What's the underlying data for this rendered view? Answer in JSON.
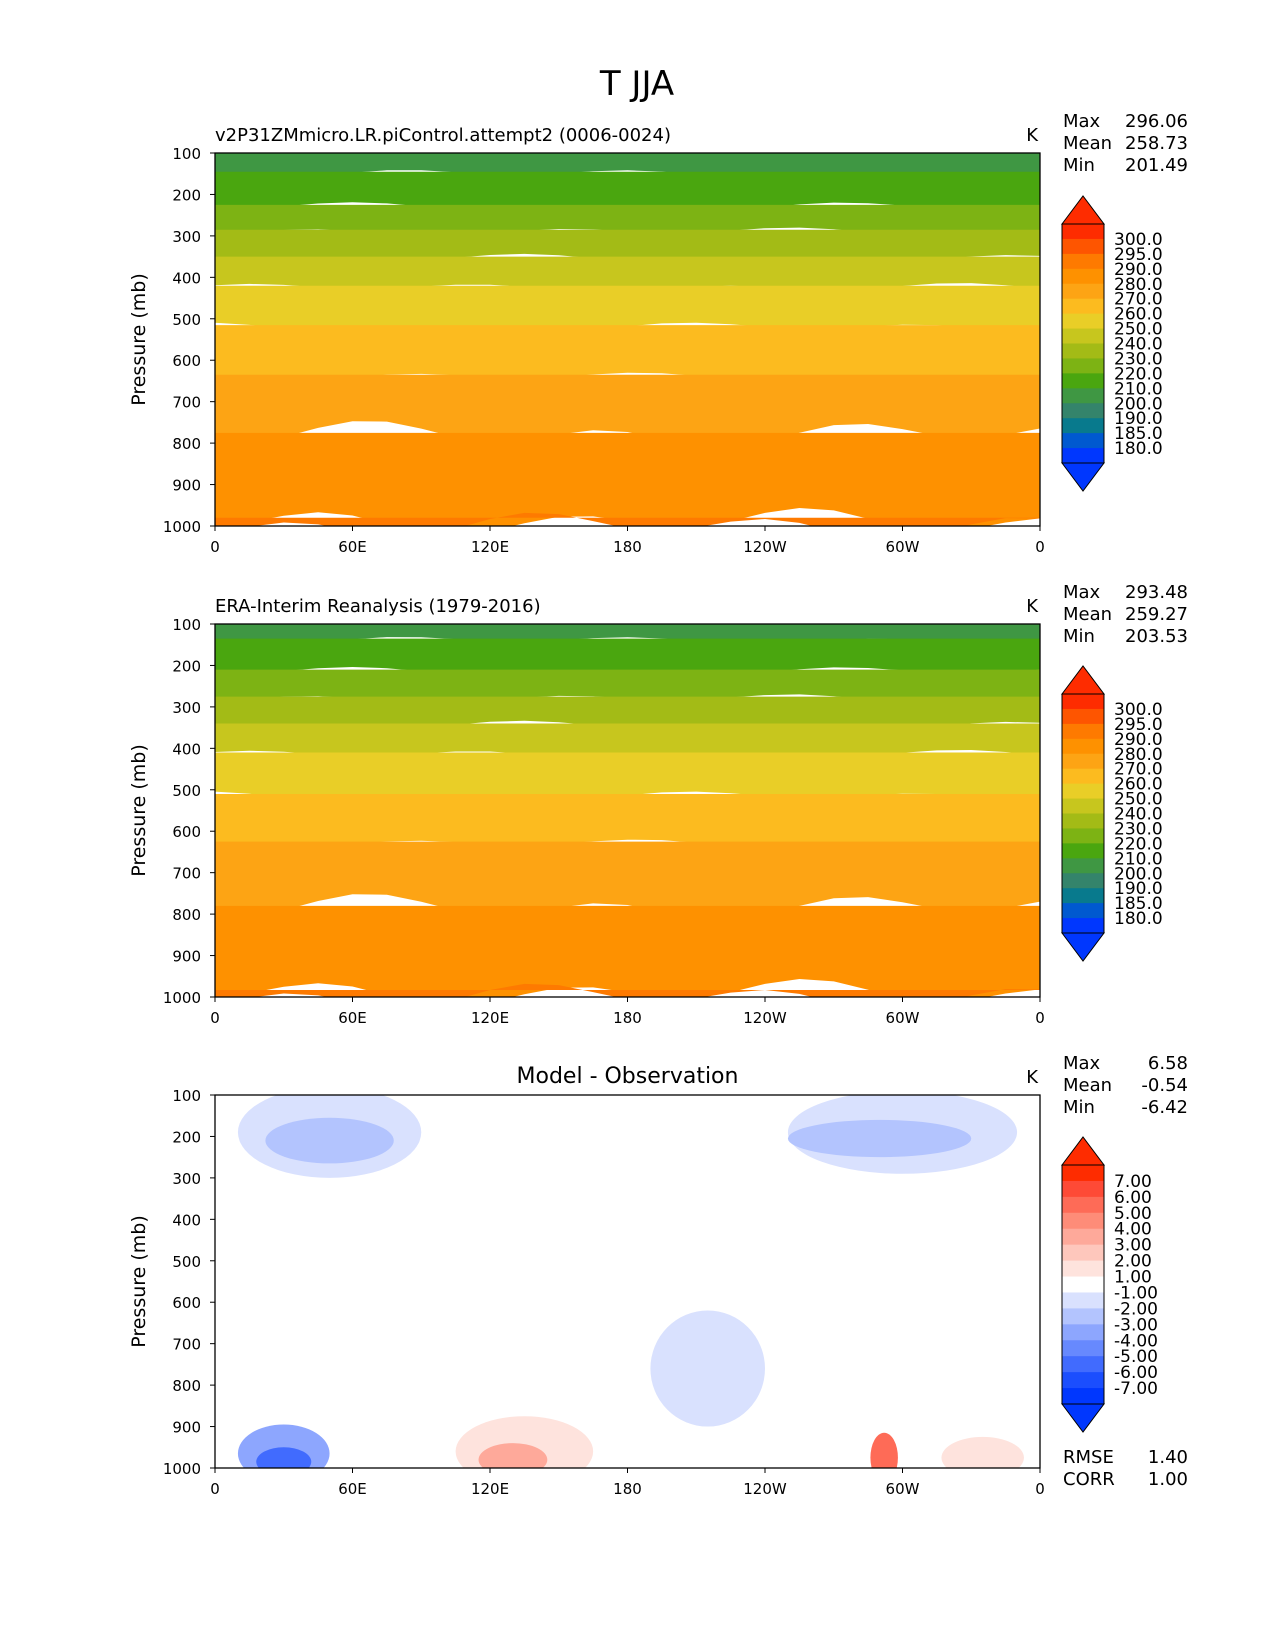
{
  "figure_title": "T JJA",
  "chart_data": [
    {
      "type": "heatmap",
      "title": "v2P31ZMmicro.LR.piControl.attempt2 (0006-0024)",
      "units": "K",
      "ylabel": "Pressure (mb)",
      "xticks": [
        "0",
        "60E",
        "120E",
        "180",
        "120W",
        "60W",
        "0"
      ],
      "yticks": [
        "100",
        "200",
        "300",
        "400",
        "500",
        "600",
        "700",
        "800",
        "900",
        "1000"
      ],
      "ylim": [
        1000,
        100
      ],
      "xlim": [
        0,
        360
      ],
      "stats": {
        "max_label": "Max",
        "max": "296.06",
        "mean_label": "Mean",
        "mean": "258.73",
        "min_label": "Min",
        "min": "201.49"
      },
      "colorbar": {
        "labels": [
          "300.0",
          "295.0",
          "290.0",
          "280.0",
          "270.0",
          "260.0",
          "250.0",
          "240.0",
          "230.0",
          "220.0",
          "210.0",
          "200.0",
          "190.0",
          "185.0",
          "180.0"
        ],
        "colors": [
          "#fe2c00",
          "#fe5500",
          "#fe7a00",
          "#fe9100",
          "#fda414",
          "#fcbb1f",
          "#e9ce27",
          "#c7c61e",
          "#a3bb16",
          "#7db314",
          "#4aa60f",
          "#3f9743",
          "#34846b",
          "#087a8d",
          "#0059d0",
          "#0037fe"
        ],
        "over": "#fe2c00",
        "under": "#0037fe"
      },
      "bands": [
        {
          "p_top": 100,
          "p_bottom": 150,
          "color": "#3f9743"
        },
        {
          "p_top": 150,
          "p_bottom": 230,
          "color": "#4aa60f"
        },
        {
          "p_top": 230,
          "p_bottom": 290,
          "color": "#7db314"
        },
        {
          "p_top": 290,
          "p_bottom": 355,
          "color": "#a3bb16"
        },
        {
          "p_top": 355,
          "p_bottom": 425,
          "color": "#c7c61e"
        },
        {
          "p_top": 425,
          "p_bottom": 520,
          "color": "#e9ce27"
        },
        {
          "p_top": 520,
          "p_bottom": 640,
          "color": "#fcbb1f"
        },
        {
          "p_top": 640,
          "p_bottom": 780,
          "color": "#fda414"
        },
        {
          "p_top": 780,
          "p_bottom": 990,
          "color": "#fe9100"
        },
        {
          "p_top": 985,
          "p_bottom": 1000,
          "color": "#fe7a00"
        }
      ]
    },
    {
      "type": "heatmap",
      "title": "ERA-Interim Reanalysis (1979-2016)",
      "units": "K",
      "ylabel": "Pressure (mb)",
      "xticks": [
        "0",
        "60E",
        "120E",
        "180",
        "120W",
        "60W",
        "0"
      ],
      "yticks": [
        "100",
        "200",
        "300",
        "400",
        "500",
        "600",
        "700",
        "800",
        "900",
        "1000"
      ],
      "ylim": [
        1000,
        100
      ],
      "xlim": [
        0,
        360
      ],
      "stats": {
        "max_label": "Max",
        "max": "293.48",
        "mean_label": "Mean",
        "mean": "259.27",
        "min_label": "Min",
        "min": "203.53"
      },
      "colorbar": {
        "labels": [
          "300.0",
          "295.0",
          "290.0",
          "280.0",
          "270.0",
          "260.0",
          "250.0",
          "240.0",
          "230.0",
          "220.0",
          "210.0",
          "200.0",
          "190.0",
          "185.0",
          "180.0"
        ],
        "colors": [
          "#fe2c00",
          "#fe5500",
          "#fe7a00",
          "#fe9100",
          "#fda414",
          "#fcbb1f",
          "#e9ce27",
          "#c7c61e",
          "#a3bb16",
          "#7db314",
          "#4aa60f",
          "#3f9743",
          "#34846b",
          "#087a8d",
          "#0059d0",
          "#0037fe"
        ],
        "over": "#fe2c00",
        "under": "#0037fe"
      },
      "bands": [
        {
          "p_top": 100,
          "p_bottom": 140,
          "color": "#3f9743"
        },
        {
          "p_top": 140,
          "p_bottom": 215,
          "color": "#4aa60f"
        },
        {
          "p_top": 215,
          "p_bottom": 280,
          "color": "#7db314"
        },
        {
          "p_top": 280,
          "p_bottom": 345,
          "color": "#a3bb16"
        },
        {
          "p_top": 345,
          "p_bottom": 415,
          "color": "#c7c61e"
        },
        {
          "p_top": 415,
          "p_bottom": 515,
          "color": "#e9ce27"
        },
        {
          "p_top": 515,
          "p_bottom": 630,
          "color": "#fcbb1f"
        },
        {
          "p_top": 630,
          "p_bottom": 785,
          "color": "#fda414"
        },
        {
          "p_top": 785,
          "p_bottom": 990,
          "color": "#fe9100"
        },
        {
          "p_top": 988,
          "p_bottom": 1000,
          "color": "#fe7a00"
        }
      ]
    },
    {
      "type": "heatmap",
      "title": "Model - Observation",
      "units": "K",
      "ylabel": "Pressure (mb)",
      "xticks": [
        "0",
        "60E",
        "120E",
        "180",
        "120W",
        "60W",
        "0"
      ],
      "yticks": [
        "100",
        "200",
        "300",
        "400",
        "500",
        "600",
        "700",
        "800",
        "900",
        "1000"
      ],
      "ylim": [
        1000,
        100
      ],
      "xlim": [
        0,
        360
      ],
      "stats": {
        "max_label": "Max",
        "max": "6.58",
        "mean_label": "Mean",
        "mean": "-0.54",
        "min_label": "Min",
        "min": "-6.42"
      },
      "extra_stats": {
        "rmse_label": "RMSE",
        "rmse": "1.40",
        "corr_label": "CORR",
        "corr": "1.00"
      },
      "colorbar": {
        "labels": [
          "7.00",
          "6.00",
          "5.00",
          "4.00",
          "3.00",
          "2.00",
          "1.00",
          "-1.00",
          "-2.00",
          "-3.00",
          "-4.00",
          "-5.00",
          "-6.00",
          "-7.00"
        ],
        "colors": [
          "#fe2c00",
          "#fe4a36",
          "#fe6b57",
          "#fe8c78",
          "#fea99a",
          "#fec7bc",
          "#fee3dd",
          "#ffffff",
          "#d9e1fe",
          "#b3c4fe",
          "#8da6fe",
          "#6789fe",
          "#416bfe",
          "#1b4efe",
          "#0037fe"
        ],
        "over": "#fe2c00",
        "under": "#0037fe"
      },
      "anomalies": [
        {
          "lon": 50,
          "p": 190,
          "dlon": 40,
          "dp": 110,
          "color": "#d9e1fe"
        },
        {
          "lon": 50,
          "p": 210,
          "dlon": 28,
          "dp": 55,
          "color": "#b3c4fe"
        },
        {
          "lon": 300,
          "p": 190,
          "dlon": 50,
          "dp": 100,
          "color": "#d9e1fe"
        },
        {
          "lon": 290,
          "p": 205,
          "dlon": 40,
          "dp": 45,
          "color": "#b3c4fe"
        },
        {
          "lon": 215,
          "p": 760,
          "dlon": 25,
          "dp": 140,
          "color": "#d9e1fe"
        },
        {
          "lon": 30,
          "p": 965,
          "dlon": 20,
          "dp": 70,
          "color": "#8da6fe"
        },
        {
          "lon": 30,
          "p": 985,
          "dlon": 12,
          "dp": 35,
          "color": "#416bfe"
        },
        {
          "lon": 135,
          "p": 960,
          "dlon": 30,
          "dp": 85,
          "color": "#fee3dd"
        },
        {
          "lon": 130,
          "p": 980,
          "dlon": 15,
          "dp": 40,
          "color": "#fea99a"
        },
        {
          "lon": 292,
          "p": 975,
          "dlon": 6,
          "dp": 60,
          "color": "#fe6b57"
        },
        {
          "lon": 335,
          "p": 975,
          "dlon": 18,
          "dp": 50,
          "color": "#fee3dd"
        }
      ]
    }
  ]
}
